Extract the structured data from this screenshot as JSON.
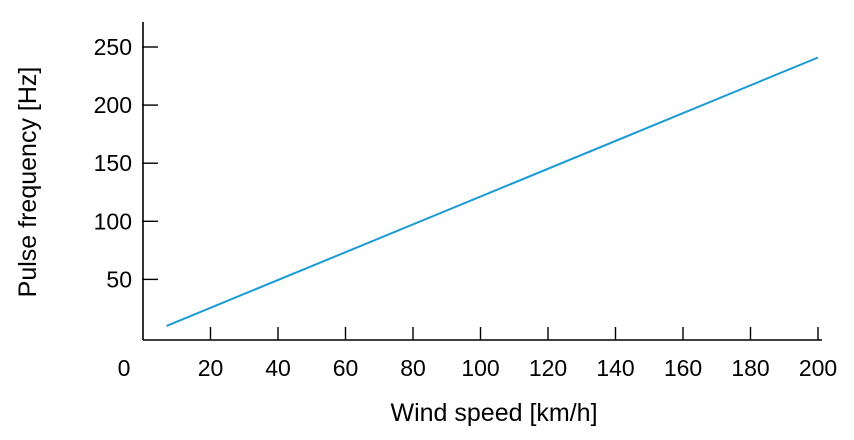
{
  "chart_data": {
    "type": "line",
    "title": "",
    "xlabel": "Wind speed [km/h]",
    "ylabel": "Pulse frequency [Hz]",
    "xlim": [
      0,
      200
    ],
    "ylim": [
      0,
      250
    ],
    "x_ticks": [
      0,
      20,
      40,
      60,
      80,
      100,
      120,
      140,
      160,
      180,
      200
    ],
    "y_ticks": [
      50,
      100,
      150,
      200,
      250
    ],
    "grid": false,
    "legend": "none",
    "series": [
      {
        "color": "#1a9ad6",
        "x": [
          7,
          200
        ],
        "y": [
          10,
          241
        ]
      }
    ]
  }
}
